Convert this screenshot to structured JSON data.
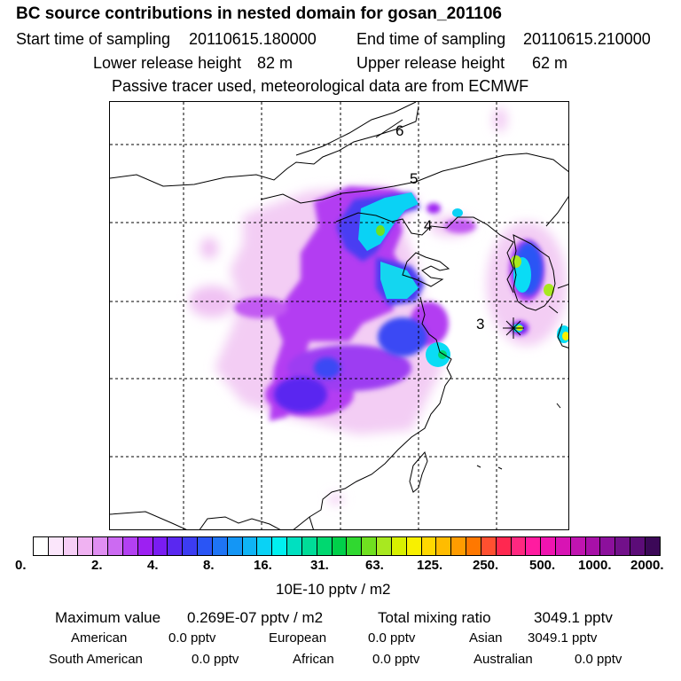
{
  "header": {
    "title": "BC  source contributions in nested domain for gosan_201106",
    "start_label": "Start time of sampling",
    "start_value": "20110615.180000",
    "end_label": "End time of sampling",
    "end_value": "20110615.210000",
    "lower_label": "Lower release height",
    "lower_value": "82 m",
    "upper_label": "Upper release height",
    "upper_value": "62 m",
    "note": "Passive tracer used, meteorological data are from ECMWF"
  },
  "chart_data": {
    "type": "heatmap",
    "title": "BC  source contributions in nested domain for gosan_201106",
    "units": "10E-10 pptv / m2",
    "grid_lines": true,
    "point_labels": [
      {
        "label": "6",
        "description": "backward trajectory time marker"
      },
      {
        "label": "5",
        "description": "backward trajectory time marker"
      },
      {
        "label": "4",
        "description": "backward trajectory time marker"
      },
      {
        "label": "3",
        "description": "backward trajectory time marker"
      }
    ],
    "colorbar_ticks": [
      "0.",
      "2.",
      "4.",
      "8.",
      "16.",
      "31.",
      "63.",
      "125.",
      "250.",
      "500.",
      "1000.",
      "2000."
    ],
    "colorbar_colors": [
      "#ffffff",
      "#fbe6fb",
      "#f6cef6",
      "#f0b2f2",
      "#e08ef2",
      "#cc6af2",
      "#b340f2",
      "#9d20f2",
      "#7a1cf2",
      "#5a28f0",
      "#3c3cf2",
      "#2a55f5",
      "#1e74f5",
      "#1496f5",
      "#0fb4f5",
      "#0ad2f5",
      "#00f0f0",
      "#00e0c0",
      "#00dc98",
      "#00d870",
      "#00d04a",
      "#30d830",
      "#70e020",
      "#a8e820",
      "#d8f000",
      "#f8f000",
      "#ffd800",
      "#ffbc00",
      "#ff9c00",
      "#ff7800",
      "#ff5030",
      "#ff2850",
      "#ff2880",
      "#ff1ca0",
      "#f014b0",
      "#d814b4",
      "#c014b0",
      "#a810a8",
      "#8c109c",
      "#72108a",
      "#5c0c78",
      "#3c0858"
    ]
  },
  "stats": {
    "max_label": "Maximum value",
    "max_value": "0.269E-07 pptv / m2",
    "total_label": "Total mixing ratio",
    "total_value": "3049.1 pptv"
  },
  "sources": [
    {
      "name": "American",
      "value": "0.0 pptv"
    },
    {
      "name": "European",
      "value": "0.0 pptv"
    },
    {
      "name": "Asian",
      "value": "3049.1 pptv"
    },
    {
      "name": "South American",
      "value": "0.0 pptv"
    },
    {
      "name": "African",
      "value": "0.0 pptv"
    },
    {
      "name": "Australian",
      "value": "0.0 pptv"
    }
  ]
}
